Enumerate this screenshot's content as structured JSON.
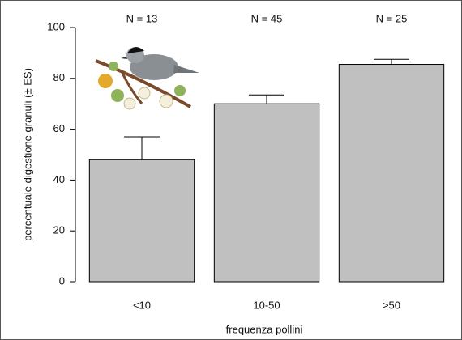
{
  "chart_data": {
    "type": "bar",
    "categories": [
      "<10",
      "10-50",
      ">50"
    ],
    "values": [
      48,
      70,
      85.5
    ],
    "errors": [
      9,
      3.5,
      2
    ],
    "annotations": [
      "N =  13",
      "N =  45",
      "N =  25"
    ],
    "x_label": "frequenza pollini",
    "y_label": "percentuale digestione granuli (± ES)",
    "color": "#c0c0c0",
    "ylim": [
      0,
      100
    ],
    "yticks": [
      0,
      20,
      40,
      60,
      80,
      100
    ]
  }
}
